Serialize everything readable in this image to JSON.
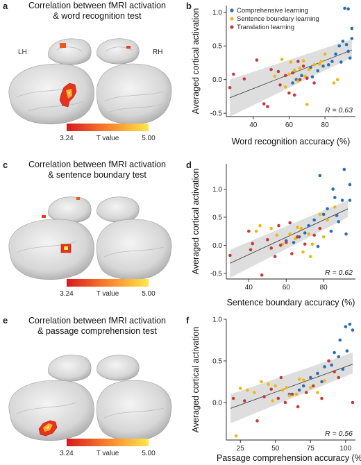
{
  "panels": [
    {
      "letter_left": "a",
      "letter_right": "b",
      "title_line1": "Correlation between fMRI activation",
      "title_line2": "& word recognition test",
      "lh": "LH",
      "rh": "RH",
      "colorbar": {
        "min": "3.24",
        "label": "T value",
        "max": "5.00",
        "colors": [
          "#d7191c",
          "#f46d2a",
          "#fdae3a",
          "#fee84a"
        ]
      }
    },
    {
      "letter_left": "c",
      "letter_right": "d",
      "title_line1": "Correlation between fMRI activation",
      "title_line2": "& sentence boundary test",
      "colorbar": {
        "min": "3.24",
        "label": "T value",
        "max": "5.00",
        "colors": [
          "#d7191c",
          "#f46d2a",
          "#fdae3a",
          "#fee84a"
        ]
      }
    },
    {
      "letter_left": "e",
      "letter_right": "f",
      "title_line1": "Correlation between fMRI activation",
      "title_line2": "& passage comprehension test",
      "colorbar": {
        "min": "3.24",
        "label": "T value",
        "max": "5.00",
        "colors": [
          "#d7191c",
          "#f46d2a",
          "#fdae3a",
          "#fee84a"
        ]
      }
    }
  ],
  "colors": {
    "comprehensive": "#2a6fb4",
    "sentence": "#efb80e",
    "translation": "#c43b3b",
    "fit_line": "#444444",
    "ci_band": "#d6d6d6"
  },
  "chart_data": [
    {
      "type": "scatter",
      "panel": "b",
      "xlabel": "Word recognition accuracy (%)",
      "ylabel": "Averaged cortical activation",
      "xlim": [
        25,
        97
      ],
      "ylim": [
        -0.55,
        1.1
      ],
      "xticks": [
        40,
        60,
        80
      ],
      "yticks": [
        -0.5,
        0,
        0.5,
        1.0
      ],
      "ytick_labels": [
        "-0.5",
        "0.0",
        "0.5",
        "1.0"
      ],
      "annotation": "R = 0.63",
      "legend_position": "top-left",
      "fit": {
        "x": [
          27,
          95
        ],
        "y": [
          -0.27,
          0.44
        ],
        "ci_lower": [
          -0.55,
          0.33
        ],
        "ci_upper": [
          0.0,
          0.6
        ]
      },
      "series": [
        {
          "name": "Comprehensive learning",
          "color_key": "comprehensive",
          "points": [
            [
              93,
              1.05
            ],
            [
              91,
              1.06
            ],
            [
              95,
              0.76
            ],
            [
              90,
              0.57
            ],
            [
              92,
              0.52
            ],
            [
              88,
              0.5
            ],
            [
              93,
              0.42
            ],
            [
              94,
              0.32
            ],
            [
              86,
              0.38
            ],
            [
              84,
              0.27
            ],
            [
              82,
              0.22
            ],
            [
              76,
              0.13
            ],
            [
              73,
              0.04
            ],
            [
              70,
              0.02
            ],
            [
              67,
              0.06
            ],
            [
              64,
              0.0
            ],
            [
              95,
              0.61
            ],
            [
              89,
              0.26
            ],
            [
              79,
              0.2
            ],
            [
              62,
              -0.05
            ],
            [
              72,
              0.18
            ]
          ]
        },
        {
          "name": "Sentence boundary learning",
          "color_key": "sentence",
          "points": [
            [
              56,
              0.3
            ],
            [
              61,
              0.26
            ],
            [
              68,
              0.28
            ],
            [
              71,
              0.15
            ],
            [
              74,
              0.22
            ],
            [
              80,
              0.38
            ],
            [
              77,
              0.23
            ],
            [
              85,
              -0.05
            ],
            [
              60,
              0.08
            ],
            [
              66,
              0.17
            ],
            [
              70,
              -0.37
            ],
            [
              52,
              0.05
            ],
            [
              65,
              -0.02
            ],
            [
              78,
              0.27
            ],
            [
              58,
              -0.11
            ],
            [
              63,
              0.14
            ],
            [
              87,
              0.0
            ],
            [
              69,
              0.05
            ]
          ]
        },
        {
          "name": "Translation learning",
          "color_key": "translation",
          "points": [
            [
              29,
              0.08
            ],
            [
              27,
              -0.12
            ],
            [
              35,
              0.01
            ],
            [
              42,
              0.29
            ],
            [
              46,
              -0.36
            ],
            [
              48,
              -0.4
            ],
            [
              54,
              0.12
            ],
            [
              58,
              0.06
            ],
            [
              60,
              -0.2
            ],
            [
              63,
              -0.23
            ],
            [
              66,
              0.0
            ],
            [
              70,
              0.02
            ],
            [
              74,
              -0.05
            ],
            [
              62,
              0.1
            ],
            [
              55,
              -0.08
            ],
            [
              68,
              0.2
            ],
            [
              50,
              0.15
            ],
            [
              65,
              0.27
            ]
          ]
        }
      ]
    },
    {
      "type": "scatter",
      "panel": "d",
      "xlabel": "Sentence boundary accuracy (%)",
      "ylabel": "Averaged cortical activation",
      "xlim": [
        28,
        97
      ],
      "ylim": [
        -0.6,
        1.45
      ],
      "xticks": [
        40,
        60,
        80
      ],
      "yticks": [
        -0.5,
        0,
        0.5,
        1.0
      ],
      "ytick_labels": [
        "-0.5",
        "0.0",
        "0.5",
        "1.0"
      ],
      "annotation": "R = 0.62",
      "fit": {
        "x": [
          30,
          93
        ],
        "y": [
          -0.32,
          0.65
        ],
        "ci_lower": [
          -0.58,
          0.5
        ],
        "ci_upper": [
          -0.08,
          0.8
        ]
      },
      "series": [
        {
          "name": "Comprehensive learning",
          "color_key": "comprehensive",
          "points": [
            [
              91,
              1.35
            ],
            [
              94,
              1.08
            ],
            [
              85,
              1.0
            ],
            [
              78,
              1.24
            ],
            [
              86,
              0.85
            ],
            [
              90,
              0.8
            ],
            [
              94,
              0.8
            ],
            [
              82,
              0.65
            ],
            [
              80,
              0.55
            ],
            [
              75,
              0.45
            ],
            [
              88,
              0.42
            ],
            [
              84,
              0.25
            ],
            [
              72,
              0.35
            ],
            [
              70,
              0.22
            ],
            [
              67,
              0.15
            ],
            [
              64,
              0.05
            ],
            [
              60,
              0.08
            ],
            [
              77,
              -0.02
            ],
            [
              92,
              0.2
            ],
            [
              87,
              0.53
            ]
          ]
        },
        {
          "name": "Sentence boundary learning",
          "color_key": "sentence",
          "points": [
            [
              46,
              0.35
            ],
            [
              52,
              0.3
            ],
            [
              55,
              0.18
            ],
            [
              62,
              0.2
            ],
            [
              65,
              0.12
            ],
            [
              72,
              0.2
            ],
            [
              74,
              0.02
            ],
            [
              78,
              0.55
            ],
            [
              82,
              0.45
            ],
            [
              86,
              0.68
            ],
            [
              69,
              -0.12
            ],
            [
              73,
              -0.2
            ],
            [
              58,
              0.02
            ],
            [
              44,
              0.25
            ],
            [
              66,
              0.32
            ],
            [
              80,
              0.15
            ],
            [
              68,
              0.3
            ]
          ]
        },
        {
          "name": "Translation learning",
          "color_key": "translation",
          "points": [
            [
              30,
              -0.18
            ],
            [
              42,
              0.03
            ],
            [
              40,
              0.25
            ],
            [
              41,
              -0.08
            ],
            [
              47,
              -0.53
            ],
            [
              50,
              0.1
            ],
            [
              54,
              -0.2
            ],
            [
              57,
              0.0
            ],
            [
              60,
              0.05
            ],
            [
              63,
              -0.15
            ],
            [
              66,
              0.15
            ],
            [
              70,
              0.02
            ],
            [
              75,
              0.18
            ],
            [
              78,
              0.3
            ],
            [
              62,
              0.4
            ],
            [
              56,
              0.35
            ],
            [
              52,
              -0.05
            ]
          ]
        }
      ]
    },
    {
      "type": "scatter",
      "panel": "f",
      "xlabel": "Passage comprehension accuracy (%)",
      "ylabel": "Averaged cortical activation",
      "xlim": [
        15,
        107
      ],
      "ylim": [
        -0.45,
        1.0
      ],
      "xticks": [
        25,
        50,
        75,
        100
      ],
      "yticks": [
        0,
        0.5,
        1.0
      ],
      "ytick_labels": [
        "0.0",
        "0.5",
        "1.0"
      ],
      "annotation": "R = 0.56",
      "fit": {
        "x": [
          18,
          105
        ],
        "y": [
          -0.07,
          0.46
        ],
        "ci_lower": [
          -0.25,
          0.35
        ],
        "ci_upper": [
          0.1,
          0.6
        ]
      },
      "series": [
        {
          "name": "Comprehensive learning",
          "color_key": "comprehensive",
          "points": [
            [
              103,
              0.94
            ],
            [
              100,
              0.91
            ],
            [
              105,
              0.87
            ],
            [
              96,
              0.75
            ],
            [
              101,
              0.62
            ],
            [
              92,
              0.6
            ],
            [
              88,
              0.5
            ],
            [
              85,
              0.43
            ],
            [
              80,
              0.35
            ],
            [
              75,
              0.3
            ],
            [
              70,
              0.2
            ],
            [
              98,
              0.4
            ],
            [
              95,
              0.55
            ],
            [
              83,
              0.25
            ],
            [
              60,
              0.1
            ],
            [
              67,
              0.15
            ],
            [
              90,
              0.45
            ]
          ]
        },
        {
          "name": "Sentence boundary learning",
          "color_key": "sentence",
          "points": [
            [
              22,
              -0.4
            ],
            [
              25,
              0.17
            ],
            [
              30,
              0.15
            ],
            [
              35,
              0.12
            ],
            [
              40,
              0.25
            ],
            [
              45,
              0.22
            ],
            [
              50,
              0.2
            ],
            [
              55,
              0.15
            ],
            [
              60,
              0.08
            ],
            [
              65,
              0.1
            ],
            [
              70,
              0.27
            ],
            [
              75,
              0.18
            ],
            [
              80,
              0.12
            ],
            [
              85,
              0.26
            ],
            [
              48,
              0.02
            ],
            [
              58,
              0.18
            ],
            [
              67,
              0.28
            ]
          ]
        },
        {
          "name": "Translation learning",
          "color_key": "translation",
          "points": [
            [
              20,
              0.05
            ],
            [
              28,
              0.02
            ],
            [
              37,
              -0.22
            ],
            [
              42,
              0.07
            ],
            [
              47,
              0.16
            ],
            [
              52,
              0.05
            ],
            [
              57,
              0.0
            ],
            [
              62,
              0.1
            ],
            [
              66,
              -0.05
            ],
            [
              72,
              0.12
            ],
            [
              77,
              0.2
            ],
            [
              83,
              0.05
            ],
            [
              88,
              0.5
            ],
            [
              92,
              0.37
            ],
            [
              105,
              0.0
            ],
            [
              54,
              0.3
            ],
            [
              95,
              0.3
            ]
          ]
        }
      ]
    }
  ]
}
